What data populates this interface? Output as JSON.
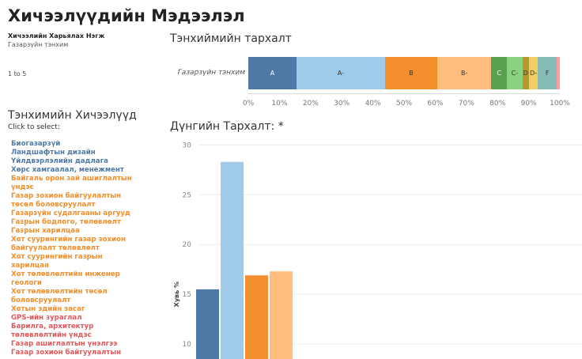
{
  "page": {
    "title": "Хичээлүүдийн Мэдээлэл",
    "department_label": "Хичээлийн Харьялах Нэгж",
    "department_value": "Газарзүйн тэнхим",
    "pager": "1 to 5"
  },
  "distribution": {
    "title": "Тэнхиймийн тархалт",
    "row_label": "Газарзүйн тэнхим",
    "segments": [
      {
        "grade": "A",
        "share": 0.155,
        "color": "#4e79a7",
        "dark": true
      },
      {
        "grade": "A-",
        "share": 0.283,
        "color": "#a0cbe8",
        "dark": false
      },
      {
        "grade": "B",
        "share": 0.169,
        "color": "#f28e2b",
        "dark": false
      },
      {
        "grade": "B-",
        "share": 0.173,
        "color": "#ffbe7d",
        "dark": false
      },
      {
        "grade": "C",
        "share": 0.05,
        "color": "#59a14f",
        "dark": true
      },
      {
        "grade": "C-",
        "share": 0.05,
        "color": "#8cd17d",
        "dark": false
      },
      {
        "grade": "D",
        "share": 0.02,
        "color": "#b6992d",
        "dark": false
      },
      {
        "grade": "D-",
        "share": 0.03,
        "color": "#f1ce63",
        "dark": false
      },
      {
        "grade": "F",
        "share": 0.06,
        "color": "#86bcb6",
        "dark": false
      },
      {
        "grade": "",
        "share": 0.01,
        "color": "#ff9d9a",
        "dark": false
      }
    ],
    "ticks": [
      "0%",
      "10%",
      "20%",
      "30%",
      "40%",
      "50%",
      "60%",
      "70%",
      "80%",
      "90%",
      "100%"
    ]
  },
  "courses": {
    "title": "Тэнхимийн Хичээлүүд",
    "subtitle": "Click to select:",
    "items": [
      {
        "label": "Биогазарзүй",
        "color": "#4e79a7"
      },
      {
        "label": "Ландшафтын дизайн",
        "color": "#4e79a7"
      },
      {
        "label": "Үйлдвэрлэлийн дадлага",
        "color": "#4e79a7"
      },
      {
        "label": "Хөрс хамгаалал, менежмент",
        "color": "#4e79a7"
      },
      {
        "label": "Байгаль орон зай ашиглалтын",
        "color": "#f28e2b"
      },
      {
        "label": "үндэс",
        "color": "#f28e2b"
      },
      {
        "label": "Газар зохион байгуулалтын",
        "color": "#f28e2b"
      },
      {
        "label": "төсөл боловсруулалт",
        "color": "#f28e2b"
      },
      {
        "label": "Газарзүйн судалгааны аргууд",
        "color": "#f28e2b"
      },
      {
        "label": "Газрын бодлого, төлөвлөлт",
        "color": "#f28e2b"
      },
      {
        "label": "Газрын харилцаа",
        "color": "#f28e2b"
      },
      {
        "label": "Хот суурингийн газар зохион",
        "color": "#f28e2b"
      },
      {
        "label": "байгуулалт төлөвлөлт",
        "color": "#f28e2b"
      },
      {
        "label": "Хот суурингийн газрын",
        "color": "#f28e2b"
      },
      {
        "label": "харилцаа",
        "color": "#f28e2b"
      },
      {
        "label": "Хот төлөвлөлтийн инженер",
        "color": "#f28e2b"
      },
      {
        "label": "геологи",
        "color": "#f28e2b"
      },
      {
        "label": "Хот төлөвлөлтийн төсөл",
        "color": "#f28e2b"
      },
      {
        "label": "боловсруулалт",
        "color": "#f28e2b"
      },
      {
        "label": "Хотын эдийн засаг",
        "color": "#f28e2b"
      },
      {
        "label": "GPS-ийн зураглал",
        "color": "#e15759"
      },
      {
        "label": "Барилга, архитектур",
        "color": "#e15759"
      },
      {
        "label": "төлөвлөлтийн үндэс",
        "color": "#e15759"
      },
      {
        "label": "Газар ашиглалтын үнэлгээ",
        "color": "#e15759"
      },
      {
        "label": "Газар зохион байгуулалтын",
        "color": "#e15759"
      }
    ]
  },
  "chart_data": {
    "type": "bar",
    "title": "Дүнгийн Тархалт: *",
    "ylabel": "Хувь %",
    "xlabel": "",
    "ylim": [
      8.5,
      30.9
    ],
    "yticks": [
      10,
      15,
      20,
      25,
      30
    ],
    "grid": true,
    "series": [
      {
        "value": 15.5,
        "color": "#4e79a7"
      },
      {
        "value": 28.3,
        "color": "#a0cbe8"
      },
      {
        "value": 16.9,
        "color": "#f28e2b"
      },
      {
        "value": 17.3,
        "color": "#ffbe7d"
      }
    ]
  }
}
